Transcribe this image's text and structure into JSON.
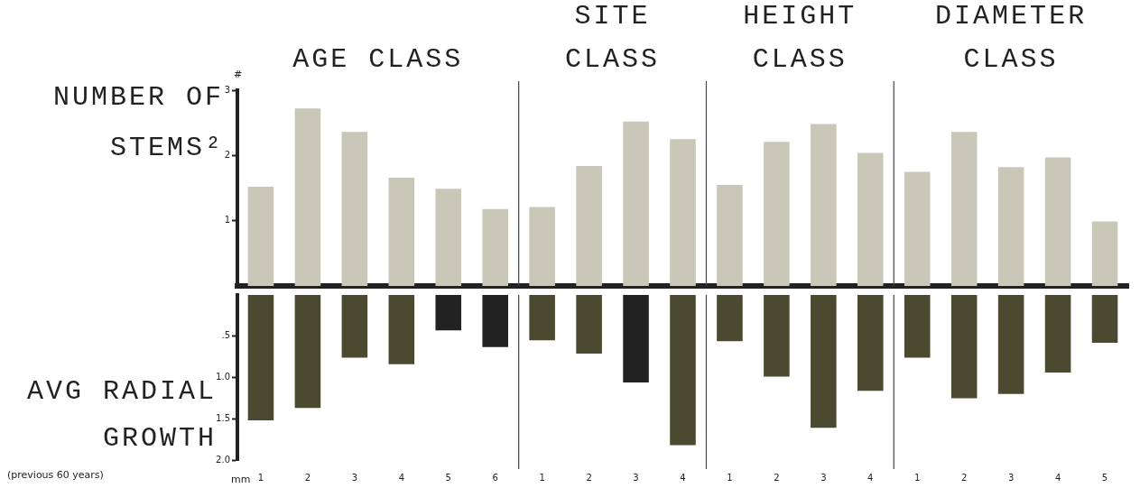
{
  "chart_data": [
    {
      "type": "bar",
      "ylabel": "NUMBER OF STEMS²",
      "categories": [
        "1",
        "2",
        "3",
        "4",
        "5",
        "6",
        "1",
        "2",
        "3",
        "4",
        "1",
        "2",
        "3",
        "4",
        "1",
        "2",
        "3",
        "4",
        "5"
      ],
      "series": [
        {
          "color": "#c9c7b8",
          "values": [
            1.52,
            2.72,
            2.36,
            1.66,
            1.49,
            1.18,
            1.21,
            1.84,
            2.52,
            2.25,
            1.55,
            2.21,
            2.48,
            2.04,
            1.75,
            2.36,
            1.82,
            1.97,
            0.99
          ]
        }
      ],
      "ylim": [
        0,
        3
      ],
      "yticks": [
        1,
        2,
        3
      ],
      "tick_labels": "y",
      "grid": false,
      "legend": false,
      "annotations": [
        "AGE CLASS",
        "SITE CLASS",
        "HEIGHT CLASS",
        "DIAMETER CLASS",
        "#"
      ]
    },
    {
      "type": "bar",
      "ylabel": "AVG RADIAL GROWTH",
      "categories": [
        "1",
        "2",
        "3",
        "4",
        "5",
        "6",
        "1",
        "2",
        "3",
        "4",
        "1",
        "2",
        "3",
        "4",
        "1",
        "2",
        "3",
        "4",
        "5"
      ],
      "series": [
        {
          "colors": [
            "#4b4a30",
            "#4b4a30",
            "#4b4a30",
            "#4b4a30",
            "#222222",
            "#222222",
            "#4b4a30",
            "#4b4a30",
            "#222222",
            "#4b4a30",
            "#4b4a30",
            "#4b4a30",
            "#4b4a30",
            "#4b4a30",
            "#4b4a30",
            "#4b4a30",
            "#4b4a30",
            "#4b4a30",
            "#4b4a30"
          ],
          "values": [
            1.52,
            1.37,
            0.76,
            0.84,
            0.43,
            0.63,
            0.55,
            0.71,
            1.06,
            1.82,
            0.56,
            0.99,
            1.61,
            1.16,
            0.76,
            1.25,
            1.2,
            0.94,
            0.58
          ]
        }
      ],
      "ylim": [
        2,
        0
      ],
      "yticks": [
        {
          "value": 0.5,
          "label": ".5"
        },
        {
          "value": 1,
          "label": "1.0"
        },
        {
          "value": 1.5,
          "label": "1.5"
        },
        {
          "value": 2,
          "label": "2.0"
        }
      ],
      "grid": false,
      "legend": false,
      "annotations": [
        "mm",
        "(previous 60 years)"
      ]
    }
  ]
}
